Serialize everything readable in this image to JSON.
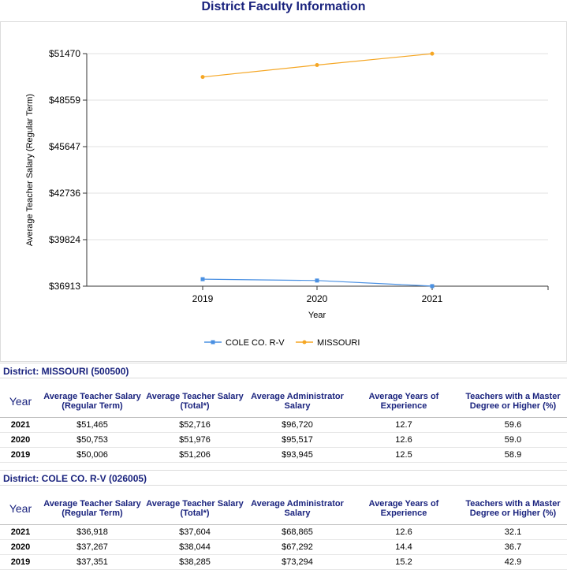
{
  "page": {
    "title": "District Faculty Information"
  },
  "chart_data": {
    "type": "line",
    "title": "",
    "xlabel": "Year",
    "ylabel": "Average Teacher Salary (Regular Term)",
    "categories": [
      "2019",
      "2020",
      "2021"
    ],
    "yticks": [
      "$36913",
      "$39824",
      "$42736",
      "$45647",
      "$48559",
      "$51470"
    ],
    "ylim": [
      36913,
      51470
    ],
    "grid": true,
    "legend_position": "bottom",
    "series": [
      {
        "name": "COLE CO. R-V",
        "values": [
          37351,
          37267,
          36918
        ],
        "color": "#4a90e2"
      },
      {
        "name": "MISSOURI",
        "values": [
          50006,
          50753,
          51465
        ],
        "color": "#f5a623"
      }
    ]
  },
  "tables": [
    {
      "district": "District: MISSOURI (500500)",
      "headers": [
        "Year",
        "Average Teacher Salary (Regular Term)",
        "Average Teacher Salary (Total*)",
        "Average Administrator Salary",
        "Average Years of Experience",
        "Teachers with a Master Degree or Higher (%)"
      ],
      "rows": [
        [
          "2021",
          "$51,465",
          "$52,716",
          "$96,720",
          "12.7",
          "59.6"
        ],
        [
          "2020",
          "$50,753",
          "$51,976",
          "$95,517",
          "12.6",
          "59.0"
        ],
        [
          "2019",
          "$50,006",
          "$51,206",
          "$93,945",
          "12.5",
          "58.9"
        ]
      ]
    },
    {
      "district": "District: COLE CO. R-V (026005)",
      "headers": [
        "Year",
        "Average Teacher Salary (Regular Term)",
        "Average Teacher Salary (Total*)",
        "Average Administrator Salary",
        "Average Years of Experience",
        "Teachers with a Master Degree or Higher (%)"
      ],
      "rows": [
        [
          "2021",
          "$36,918",
          "$37,604",
          "$68,865",
          "12.6",
          "32.1"
        ],
        [
          "2020",
          "$37,267",
          "$38,044",
          "$67,292",
          "14.4",
          "36.7"
        ],
        [
          "2019",
          "$37,351",
          "$38,285",
          "$73,294",
          "15.2",
          "42.9"
        ]
      ]
    }
  ]
}
